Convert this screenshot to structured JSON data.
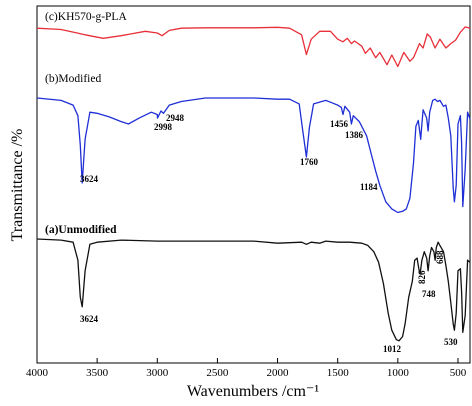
{
  "chart_data": {
    "type": "line",
    "xlabel": "Wavenumbers /cm⁻¹",
    "ylabel": "Transmittance /%",
    "xlim": [
      4000,
      400
    ],
    "x_ticks": [
      "4000",
      "3500",
      "3000",
      "2500",
      "2000",
      "1500",
      "1000",
      "500"
    ],
    "grid": false,
    "legend": "none",
    "series": [
      {
        "name": "(c)KH570-g-PLA",
        "color": "#e8303a",
        "offset": 26,
        "amp": 44,
        "x": [
          4000,
          3800,
          3600,
          3450,
          3300,
          3100,
          3000,
          2960,
          2900,
          2800,
          2600,
          2400,
          2200,
          2000,
          1900,
          1800,
          1760,
          1720,
          1650,
          1560,
          1500,
          1456,
          1420,
          1386,
          1360,
          1300,
          1270,
          1230,
          1184,
          1150,
          1090,
          1050,
          1000,
          950,
          900,
          870,
          820,
          790,
          756,
          730,
          690,
          650,
          600,
          560,
          520,
          480,
          440,
          400
        ],
        "y": [
          0.05,
          0.08,
          0.2,
          0.28,
          0.22,
          0.12,
          0.16,
          0.22,
          0.1,
          0.05,
          0.04,
          0.04,
          0.04,
          0.03,
          0.05,
          0.2,
          0.65,
          0.3,
          0.12,
          0.12,
          0.3,
          0.36,
          0.28,
          0.4,
          0.34,
          0.46,
          0.62,
          0.5,
          0.72,
          0.6,
          0.88,
          0.66,
          0.92,
          0.6,
          0.8,
          0.72,
          0.4,
          0.5,
          0.18,
          0.25,
          0.5,
          0.3,
          0.5,
          0.4,
          0.32,
          0.14,
          0.02,
          0.05
        ]
      },
      {
        "name": "(b)Modified",
        "color": "#1f2fd6",
        "offset": 98,
        "amp": 118,
        "x": [
          4000,
          3800,
          3700,
          3660,
          3640,
          3624,
          3600,
          3560,
          3500,
          3400,
          3300,
          3240,
          3150,
          3050,
          3000,
          2998,
          2970,
          2948,
          2900,
          2800,
          2600,
          2400,
          2200,
          2000,
          1900,
          1820,
          1790,
          1760,
          1735,
          1700,
          1600,
          1550,
          1500,
          1470,
          1456,
          1440,
          1400,
          1386,
          1370,
          1320,
          1260,
          1220,
          1184,
          1150,
          1100,
          1050,
          1000,
          960,
          930,
          900,
          870,
          850,
          830,
          810,
          800,
          790,
          760,
          748,
          735,
          710,
          690,
          670,
          650,
          620,
          600,
          580,
          560,
          540,
          530,
          515,
          500,
          480,
          470,
          460,
          440,
          420,
          400
        ],
        "y": [
          0.0,
          0.02,
          0.06,
          0.15,
          0.4,
          0.72,
          0.35,
          0.12,
          0.13,
          0.16,
          0.2,
          0.22,
          0.17,
          0.12,
          0.14,
          0.17,
          0.11,
          0.13,
          0.06,
          0.03,
          0.0,
          0.0,
          0.0,
          0.01,
          0.01,
          0.05,
          0.28,
          0.5,
          0.25,
          0.05,
          0.02,
          0.04,
          0.06,
          0.08,
          0.14,
          0.07,
          0.12,
          0.22,
          0.15,
          0.2,
          0.32,
          0.48,
          0.62,
          0.74,
          0.88,
          0.94,
          0.97,
          0.96,
          0.94,
          0.85,
          0.55,
          0.24,
          0.19,
          0.35,
          0.22,
          0.1,
          0.17,
          0.28,
          0.12,
          0.02,
          0.01,
          0.03,
          0.02,
          0.07,
          0.06,
          0.17,
          0.32,
          0.76,
          0.88,
          0.74,
          0.22,
          0.15,
          0.38,
          0.92,
          0.6,
          0.12,
          0.18
        ]
      },
      {
        "name": "(a)Unmodified",
        "color": "#111111",
        "offset": 239,
        "amp": 106,
        "x": [
          4000,
          3800,
          3700,
          3660,
          3640,
          3624,
          3600,
          3560,
          3500,
          3300,
          3000,
          2600,
          2200,
          2000,
          1800,
          1760,
          1720,
          1650,
          1600,
          1500,
          1400,
          1300,
          1250,
          1200,
          1160,
          1120,
          1080,
          1050,
          1012,
          990,
          960,
          940,
          910,
          880,
          860,
          840,
          826,
          815,
          800,
          780,
          760,
          748,
          735,
          720,
          700,
          690,
          680,
          665,
          650,
          620,
          600,
          580,
          560,
          540,
          530,
          515,
          500,
          480,
          470,
          460,
          440,
          420,
          400
        ],
        "y": [
          0.0,
          0.01,
          0.03,
          0.2,
          0.55,
          0.64,
          0.3,
          0.05,
          0.03,
          0.01,
          0.02,
          0.02,
          0.02,
          0.04,
          0.03,
          0.05,
          0.03,
          0.04,
          0.02,
          0.03,
          0.03,
          0.04,
          0.06,
          0.12,
          0.22,
          0.42,
          0.7,
          0.86,
          0.95,
          0.96,
          0.92,
          0.8,
          0.55,
          0.4,
          0.2,
          0.18,
          0.28,
          0.33,
          0.2,
          0.12,
          0.18,
          0.3,
          0.16,
          0.08,
          0.12,
          0.2,
          0.08,
          0.03,
          0.06,
          0.12,
          0.25,
          0.4,
          0.6,
          0.8,
          0.86,
          0.7,
          0.3,
          0.28,
          0.5,
          0.88,
          0.72,
          0.2,
          0.22
        ]
      }
    ],
    "annotations": [
      {
        "text": "2998",
        "x": 2998
      },
      {
        "text": "2948",
        "x": 2948
      },
      {
        "text": "1760",
        "x": 1760
      },
      {
        "text": "1456",
        "x": 1456
      },
      {
        "text": "1386",
        "x": 1386
      },
      {
        "text": "1184",
        "x": 1184
      },
      {
        "text": "3624",
        "x": 3624
      },
      {
        "text": "3624",
        "x": 3624
      },
      {
        "text": "1012",
        "x": 1012
      },
      {
        "text": "826",
        "x": 826
      },
      {
        "text": "748",
        "x": 748
      },
      {
        "text": "688",
        "x": 688
      },
      {
        "text": "530",
        "x": 530
      }
    ]
  }
}
